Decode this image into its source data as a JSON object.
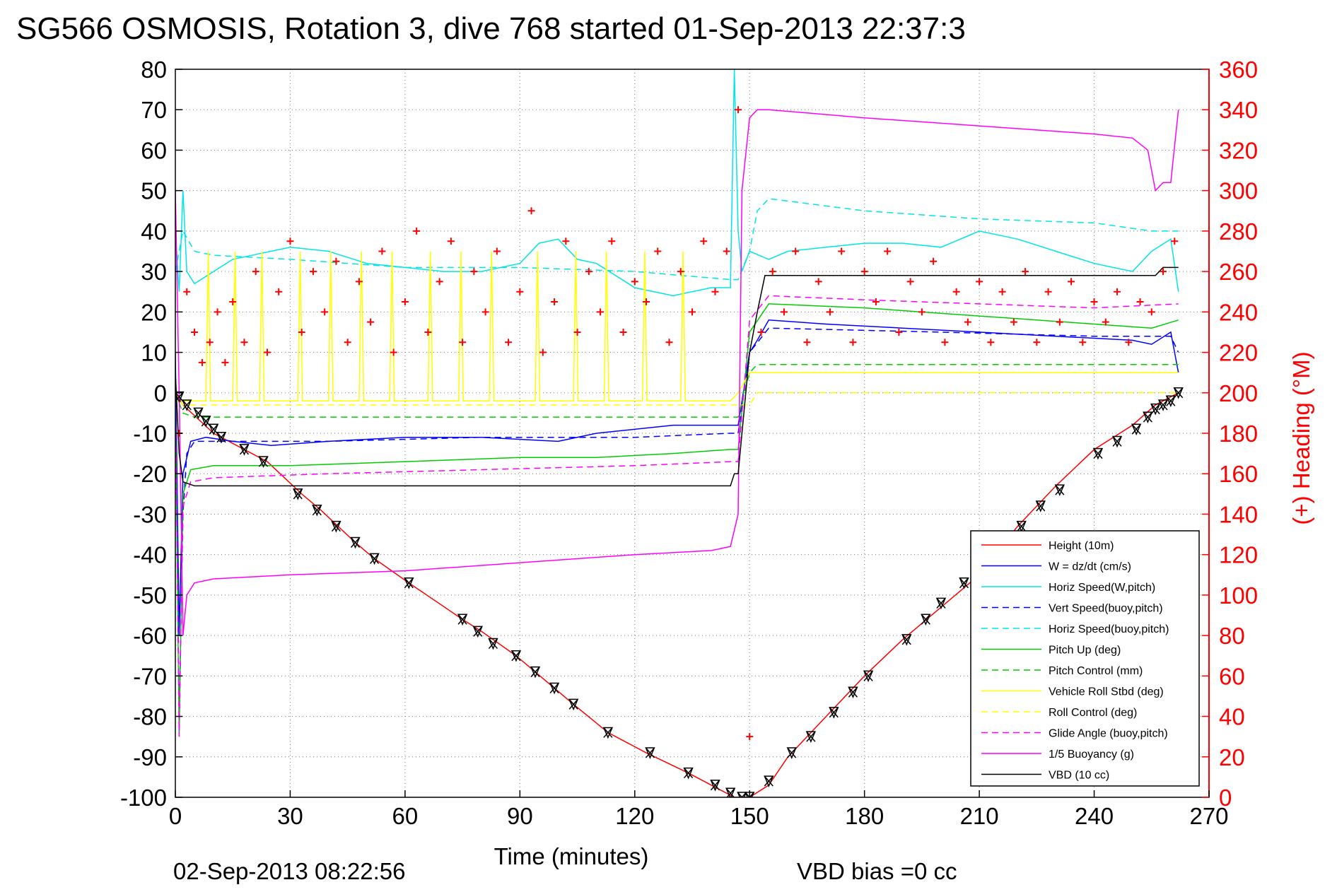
{
  "title": "SG566 OSMOSIS, Rotation 3, dive 768 started 01-Sep-2013 22:37:3",
  "footer": {
    "timestamp": "02-Sep-2013 08:22:56",
    "vbd_bias": "VBD bias =0 cc"
  },
  "chart_data": {
    "type": "line",
    "xlabel": "Time (minutes)",
    "ylabel_right": "(+) Heading (°M)",
    "xlim": [
      0,
      270
    ],
    "ylim": [
      -100,
      80
    ],
    "ylim_right": [
      0,
      360
    ],
    "x_ticks": [
      0,
      30,
      60,
      90,
      120,
      150,
      180,
      210,
      240,
      270
    ],
    "y_ticks": [
      80,
      70,
      60,
      50,
      40,
      30,
      20,
      10,
      0,
      -10,
      -20,
      -30,
      -40,
      -50,
      -60,
      -70,
      -80,
      -90,
      -100
    ],
    "y_ticks_right": [
      360,
      340,
      320,
      300,
      280,
      260,
      240,
      220,
      200,
      180,
      160,
      140,
      120,
      100,
      80,
      60,
      40,
      20,
      0
    ],
    "grid": true,
    "legend_position": "bottom-right",
    "legend": [
      {
        "label": "Height (10m)",
        "color": "#ff0000",
        "dash": "solid"
      },
      {
        "label": "W = dz/dt (cm/s)",
        "color": "#0000ff",
        "dash": "solid"
      },
      {
        "label": "Horiz Speed(W,pitch)",
        "color": "#00e5e5",
        "dash": "solid"
      },
      {
        "label": "Vert Speed(buoy,pitch)",
        "color": "#0000ff",
        "dash": "dashed"
      },
      {
        "label": "Horiz Speed(buoy,pitch)",
        "color": "#00e5e5",
        "dash": "dashed"
      },
      {
        "label": "Pitch Up (deg)",
        "color": "#00cc00",
        "dash": "solid"
      },
      {
        "label": "Pitch Control (mm)",
        "color": "#00cc00",
        "dash": "dashed"
      },
      {
        "label": "Vehicle Roll Stbd (deg)",
        "color": "#ffff00",
        "dash": "solid"
      },
      {
        "label": "Roll Control (deg)",
        "color": "#ffff00",
        "dash": "dashed"
      },
      {
        "label": "Glide Angle (buoy,pitch)",
        "color": "#ff00ff",
        "dash": "dashed"
      },
      {
        "label": "1/5 Buoyancy (g)",
        "color": "#ff00ff",
        "dash": "solid"
      },
      {
        "label": "VBD (10 cc)",
        "color": "#000000",
        "dash": "solid"
      }
    ],
    "series": [
      {
        "name": "Height (10m)",
        "color": "#ff0000",
        "dash": "solid",
        "x": [
          0,
          2,
          10,
          24,
          33,
          38,
          47,
          52,
          61,
          75,
          80,
          89,
          94,
          104,
          113,
          123,
          134,
          142,
          146,
          150,
          155,
          160,
          170,
          180,
          190,
          200,
          210,
          220,
          230,
          240,
          250,
          256,
          262
        ],
        "y": [
          0,
          -3,
          -10,
          -17,
          -25,
          -29,
          -37,
          -41,
          -47,
          -56,
          -59,
          -65,
          -69,
          -77,
          -84,
          -89,
          -94,
          -98,
          -100,
          -100,
          -97,
          -90,
          -80,
          -70,
          -61,
          -53,
          -45,
          -33,
          -23,
          -14,
          -8,
          -3,
          0
        ]
      },
      {
        "name": "W = dz/dt (cm/s)",
        "color": "#0000ff",
        "dash": "solid",
        "x": [
          0,
          1,
          2,
          4,
          8,
          15,
          25,
          40,
          60,
          80,
          100,
          110,
          130,
          145,
          147,
          150,
          152,
          155,
          170,
          190,
          210,
          230,
          250,
          255,
          260,
          262
        ],
        "y": [
          10,
          -60,
          -20,
          -12,
          -11,
          -12,
          -13,
          -12,
          -11,
          -11,
          -12,
          -10,
          -8,
          -8,
          -8,
          10,
          13,
          18,
          17,
          16,
          15,
          14,
          13,
          12,
          15,
          5
        ]
      },
      {
        "name": "Horiz Speed(W,pitch)",
        "color": "#00e5e5",
        "dash": "solid",
        "x": [
          0,
          1,
          2,
          3,
          5,
          10,
          15,
          20,
          30,
          40,
          50,
          60,
          70,
          80,
          90,
          95,
          100,
          105,
          110,
          120,
          130,
          140,
          145,
          146,
          147,
          148,
          150,
          155,
          160,
          170,
          180,
          190,
          200,
          210,
          220,
          230,
          240,
          250,
          255,
          260,
          262
        ],
        "y": [
          40,
          25,
          50,
          30,
          27,
          30,
          33,
          34,
          36,
          35,
          32,
          31,
          30,
          30,
          32,
          37,
          38,
          33,
          32,
          26,
          24,
          26,
          26,
          80,
          40,
          30,
          35,
          33,
          35,
          36,
          37,
          37,
          36,
          40,
          38,
          35,
          32,
          30,
          35,
          38,
          25
        ]
      },
      {
        "name": "Vert Speed(buoy,pitch)",
        "color": "#0000ff",
        "dash": "dashed",
        "x": [
          0,
          1,
          2,
          3,
          5,
          10,
          40,
          80,
          120,
          145,
          147,
          150,
          155,
          200,
          240,
          260,
          262
        ],
        "y": [
          0,
          -80,
          -30,
          -15,
          -12,
          -12,
          -12,
          -11,
          -11,
          -10,
          -10,
          10,
          16,
          15,
          14,
          14,
          10
        ]
      },
      {
        "name": "Horiz Speed(buoy,pitch)",
        "color": "#00e5e5",
        "dash": "dashed",
        "x": [
          0,
          2,
          5,
          10,
          30,
          60,
          90,
          120,
          145,
          147,
          150,
          152,
          155,
          180,
          210,
          240,
          255,
          262
        ],
        "y": [
          30,
          40,
          35,
          34,
          33,
          31,
          31,
          30,
          28,
          28,
          35,
          45,
          48,
          45,
          43,
          42,
          40,
          40
        ]
      },
      {
        "name": "Pitch Up (deg)",
        "color": "#00cc00",
        "dash": "solid",
        "x": [
          0,
          1,
          2,
          4,
          10,
          30,
          60,
          90,
          110,
          130,
          145,
          147,
          150,
          155,
          180,
          210,
          240,
          255,
          262
        ],
        "y": [
          0,
          -85,
          -25,
          -19,
          -18,
          -18,
          -17,
          -16,
          -16,
          -15,
          -14,
          -14,
          15,
          22,
          21,
          19,
          17,
          16,
          18
        ]
      },
      {
        "name": "Pitch Control (mm)",
        "color": "#00cc00",
        "dash": "dashed",
        "x": [
          0,
          2,
          5,
          145,
          147,
          150,
          152,
          155,
          262
        ],
        "y": [
          0,
          -5,
          -6,
          -6,
          -6,
          5,
          7,
          7,
          7
        ]
      },
      {
        "name": "Vehicle Roll Stbd (deg)",
        "color": "#ffff00",
        "dash": "solid",
        "x": [
          0,
          2,
          8,
          8.6,
          9.2,
          15,
          15.6,
          16.2,
          22,
          22.6,
          23.2,
          32,
          32.6,
          33.2,
          40,
          40.6,
          41.2,
          48,
          48.6,
          49.2,
          56,
          56.6,
          57.2,
          66,
          66.6,
          67.2,
          74,
          74.6,
          75.2,
          82,
          82.6,
          83.2,
          94,
          94.6,
          95.2,
          104,
          104.6,
          105.2,
          112,
          112.6,
          113.2,
          122,
          122.6,
          123.2,
          132,
          132.6,
          133.2,
          145,
          147,
          150,
          152,
          262
        ],
        "y": [
          0,
          -2,
          -2,
          35,
          -2,
          -2,
          35,
          -2,
          -2,
          35,
          -2,
          -2,
          35,
          -2,
          -2,
          35,
          -2,
          -2,
          35,
          -2,
          -2,
          35,
          -2,
          -2,
          35,
          -2,
          -2,
          35,
          -2,
          -2,
          35,
          -2,
          -2,
          35,
          -2,
          -2,
          35,
          -2,
          -2,
          35,
          -2,
          -2,
          35,
          -2,
          -2,
          35,
          -2,
          -2,
          0,
          5,
          5,
          5
        ]
      },
      {
        "name": "Roll Control (deg)",
        "color": "#ffff00",
        "dash": "dashed",
        "x": [
          0,
          2,
          150,
          152,
          262
        ],
        "y": [
          0,
          -3,
          -3,
          0,
          0
        ]
      },
      {
        "name": "Glide Angle (buoy,pitch)",
        "color": "#ff00ff",
        "dash": "dashed",
        "x": [
          0,
          1,
          2,
          4,
          10,
          40,
          80,
          120,
          145,
          147,
          150,
          155,
          180,
          210,
          240,
          262
        ],
        "y": [
          0,
          -85,
          -28,
          -22,
          -21,
          -20,
          -19,
          -18,
          -17,
          -17,
          18,
          24,
          23,
          22,
          21,
          22
        ]
      },
      {
        "name": "1/5 Buoyancy (g)",
        "color": "#ff00ff",
        "dash": "solid",
        "x": [
          0,
          1,
          2,
          3,
          5,
          10,
          30,
          60,
          90,
          120,
          140,
          145,
          147,
          148,
          150,
          152,
          155,
          180,
          210,
          240,
          250,
          254,
          256,
          258,
          260,
          262
        ],
        "y": [
          50,
          0,
          -60,
          -50,
          -47,
          -46,
          -45,
          -44,
          -42,
          -40,
          -39,
          -38,
          -30,
          50,
          68,
          70,
          70,
          68,
          66,
          64,
          63,
          60,
          50,
          52,
          52,
          70
        ]
      },
      {
        "name": "VBD (10 cc)",
        "color": "#000000",
        "dash": "solid",
        "x": [
          0,
          1,
          2,
          5,
          145,
          146,
          147,
          150,
          152,
          154,
          155,
          256,
          258,
          262
        ],
        "y": [
          5,
          -15,
          -22,
          -23,
          -23,
          -20,
          -20,
          10,
          20,
          29,
          29,
          29,
          31,
          31
        ]
      },
      {
        "name": "Heading (°M)",
        "color": "#ff0000",
        "dash": "markers",
        "axis": "right",
        "x": [
          1,
          3,
          5,
          7,
          9,
          11,
          13,
          15,
          18,
          21,
          24,
          27,
          30,
          33,
          36,
          39,
          42,
          45,
          48,
          51,
          54,
          57,
          60,
          63,
          66,
          69,
          72,
          75,
          78,
          81,
          84,
          87,
          90,
          93,
          96,
          99,
          102,
          105,
          108,
          111,
          114,
          117,
          120,
          123,
          126,
          129,
          132,
          135,
          138,
          141,
          144,
          147,
          150,
          153,
          156,
          159,
          162,
          165,
          168,
          171,
          174,
          177,
          180,
          183,
          186,
          189,
          192,
          195,
          198,
          201,
          204,
          207,
          210,
          213,
          216,
          219,
          222,
          225,
          228,
          231,
          234,
          237,
          240,
          243,
          246,
          249,
          252,
          255,
          258,
          261
        ],
        "y": [
          180,
          250,
          230,
          215,
          225,
          240,
          215,
          245,
          225,
          260,
          220,
          250,
          275,
          230,
          260,
          240,
          265,
          225,
          255,
          235,
          270,
          220,
          245,
          280,
          230,
          255,
          275,
          225,
          260,
          240,
          270,
          225,
          250,
          290,
          220,
          245,
          275,
          230,
          260,
          240,
          275,
          230,
          255,
          245,
          270,
          225,
          260,
          240,
          275,
          250,
          270,
          340,
          30,
          230,
          260,
          240,
          270,
          225,
          255,
          240,
          270,
          225,
          260,
          245,
          270,
          230,
          255,
          240,
          265,
          225,
          250,
          235,
          255,
          225,
          250,
          235,
          260,
          225,
          250,
          235,
          255,
          225,
          245,
          235,
          250,
          225,
          245,
          240,
          260,
          275
        ]
      },
      {
        "name": "Depth markers",
        "color": "#000000",
        "dash": "markers",
        "x": [
          1,
          3,
          6,
          8,
          10,
          12,
          18,
          23,
          32,
          37,
          42,
          47,
          52,
          61,
          75,
          79,
          83,
          89,
          94,
          99,
          104,
          113,
          124,
          134,
          141,
          145,
          148,
          150,
          155,
          161,
          166,
          172,
          177,
          181,
          191,
          196,
          200,
          206,
          221,
          226,
          231,
          241,
          246,
          251,
          254,
          256,
          258,
          260,
          262
        ],
        "y": [
          -1,
          -3,
          -5,
          -7,
          -9,
          -11,
          -14,
          -17,
          -25,
          -29,
          -33,
          -37,
          -41,
          -47,
          -56,
          -59,
          -62,
          -65,
          -69,
          -73,
          -77,
          -84,
          -89,
          -94,
          -97,
          -99,
          -100,
          -100,
          -96,
          -89,
          -85,
          -79,
          -74,
          -70,
          -61,
          -56,
          -52,
          -47,
          -33,
          -28,
          -24,
          -15,
          -12,
          -9,
          -6,
          -4,
          -3,
          -2,
          0
        ]
      }
    ]
  }
}
